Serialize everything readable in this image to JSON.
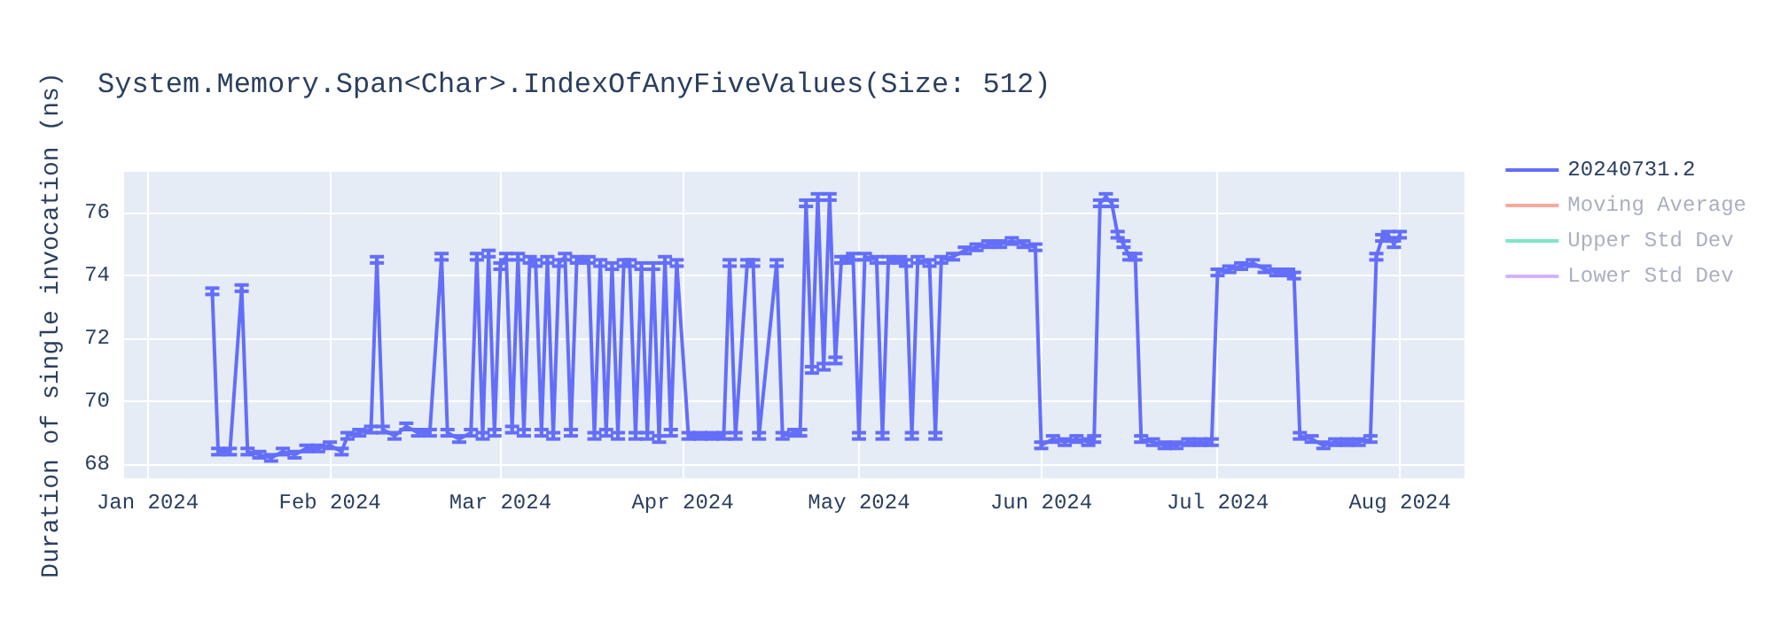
{
  "chart_data": {
    "type": "line",
    "title": "System.Memory.Span<Char>.IndexOfAnyFiveValues(Size: 512)",
    "ylabel": "Duration of single invocation (ns)",
    "x": [
      "2024-01-12",
      "2024-01-13",
      "2024-01-15",
      "2024-01-17",
      "2024-01-18",
      "2024-01-20",
      "2024-01-22",
      "2024-01-24",
      "2024-01-26",
      "2024-01-28",
      "2024-01-30",
      "2024-02-01",
      "2024-02-03",
      "2024-02-04",
      "2024-02-06",
      "2024-02-08",
      "2024-02-09",
      "2024-02-10",
      "2024-02-12",
      "2024-02-14",
      "2024-02-16",
      "2024-02-18",
      "2024-02-20",
      "2024-02-21",
      "2024-02-23",
      "2024-02-25",
      "2024-02-26",
      "2024-02-27",
      "2024-02-28",
      "2024-02-29",
      "2024-03-01",
      "2024-03-02",
      "2024-03-03",
      "2024-03-04",
      "2024-03-05",
      "2024-03-06",
      "2024-03-07",
      "2024-03-08",
      "2024-03-09",
      "2024-03-10",
      "2024-03-11",
      "2024-03-12",
      "2024-03-13",
      "2024-03-14",
      "2024-03-16",
      "2024-03-17",
      "2024-03-18",
      "2024-03-19",
      "2024-03-20",
      "2024-03-21",
      "2024-03-22",
      "2024-03-23",
      "2024-03-24",
      "2024-03-25",
      "2024-03-26",
      "2024-03-27",
      "2024-03-28",
      "2024-03-29",
      "2024-03-30",
      "2024-03-31",
      "2024-04-02",
      "2024-04-04",
      "2024-04-06",
      "2024-04-08",
      "2024-04-09",
      "2024-04-10",
      "2024-04-12",
      "2024-04-13",
      "2024-04-14",
      "2024-04-17",
      "2024-04-18",
      "2024-04-20",
      "2024-04-21",
      "2024-04-22",
      "2024-04-23",
      "2024-04-24",
      "2024-04-25",
      "2024-04-26",
      "2024-04-27",
      "2024-04-28",
      "2024-04-29",
      "2024-04-30",
      "2024-05-01",
      "2024-05-02",
      "2024-05-04",
      "2024-05-05",
      "2024-05-06",
      "2024-05-08",
      "2024-05-09",
      "2024-05-10",
      "2024-05-11",
      "2024-05-13",
      "2024-05-14",
      "2024-05-15",
      "2024-05-17",
      "2024-05-19",
      "2024-05-21",
      "2024-05-23",
      "2024-05-25",
      "2024-05-27",
      "2024-05-29",
      "2024-05-31",
      "2024-06-01",
      "2024-06-03",
      "2024-06-05",
      "2024-06-07",
      "2024-06-09",
      "2024-06-10",
      "2024-06-11",
      "2024-06-12",
      "2024-06-13",
      "2024-06-14",
      "2024-06-15",
      "2024-06-16",
      "2024-06-17",
      "2024-06-18",
      "2024-06-20",
      "2024-06-22",
      "2024-06-24",
      "2024-06-26",
      "2024-06-28",
      "2024-06-30",
      "2024-07-01",
      "2024-07-03",
      "2024-07-05",
      "2024-07-07",
      "2024-07-09",
      "2024-07-11",
      "2024-07-13",
      "2024-07-14",
      "2024-07-15",
      "2024-07-17",
      "2024-07-19",
      "2024-07-21",
      "2024-07-23",
      "2024-07-25",
      "2024-07-27",
      "2024-07-28",
      "2024-07-29",
      "2024-07-30",
      "2024-07-31",
      "2024-08-01"
    ],
    "series": [
      {
        "name": "20240731.2",
        "color": "#636efa",
        "values": [
          73.5,
          68.4,
          68.4,
          73.6,
          68.4,
          68.3,
          68.2,
          68.4,
          68.3,
          68.5,
          68.5,
          68.6,
          68.4,
          68.9,
          69.0,
          69.1,
          74.5,
          69.1,
          68.9,
          69.2,
          69.0,
          69.0,
          74.6,
          69.0,
          68.8,
          69.0,
          74.6,
          68.9,
          74.7,
          69.0,
          74.3,
          74.6,
          69.1,
          74.6,
          69.0,
          74.5,
          74.4,
          69.0,
          74.5,
          68.9,
          74.4,
          74.6,
          69.0,
          74.5,
          74.5,
          68.9,
          74.4,
          69.0,
          74.3,
          68.9,
          74.4,
          74.4,
          68.9,
          74.3,
          68.9,
          74.3,
          68.8,
          74.5,
          69.0,
          74.4,
          68.9,
          68.9,
          68.9,
          68.9,
          74.4,
          68.9,
          74.4,
          74.4,
          68.9,
          74.4,
          68.9,
          69.0,
          69.0,
          76.3,
          71.0,
          76.5,
          71.1,
          76.5,
          71.3,
          74.5,
          74.5,
          74.6,
          68.9,
          74.6,
          74.5,
          68.9,
          74.5,
          74.5,
          74.4,
          68.9,
          74.5,
          74.4,
          68.9,
          74.5,
          74.6,
          74.8,
          74.9,
          75.0,
          75.0,
          75.1,
          75.0,
          74.9,
          68.6,
          68.8,
          68.7,
          68.8,
          68.7,
          68.8,
          76.3,
          76.5,
          76.3,
          75.3,
          75.0,
          74.6,
          74.6,
          68.8,
          68.7,
          68.6,
          68.6,
          68.7,
          68.7,
          68.7,
          74.1,
          74.2,
          74.3,
          74.4,
          74.2,
          74.1,
          74.1,
          74.0,
          68.9,
          68.8,
          68.6,
          68.7,
          68.7,
          68.7,
          68.8,
          74.6,
          75.2,
          75.3,
          75.0,
          75.3
        ],
        "errors": [
          0.1,
          0.1,
          0.1,
          0.1,
          0.1,
          0.1,
          0.1,
          0.1,
          0.1,
          0.1,
          0.1,
          0.1,
          0.1,
          0.1,
          0.1,
          0.1,
          0.1,
          0.1,
          0.1,
          0.1,
          0.1,
          0.1,
          0.1,
          0.1,
          0.1,
          0.1,
          0.1,
          0.1,
          0.1,
          0.1,
          0.1,
          0.1,
          0.1,
          0.1,
          0.1,
          0.1,
          0.1,
          0.1,
          0.1,
          0.1,
          0.1,
          0.1,
          0.1,
          0.1,
          0.1,
          0.1,
          0.1,
          0.1,
          0.1,
          0.1,
          0.1,
          0.1,
          0.1,
          0.1,
          0.1,
          0.1,
          0.1,
          0.1,
          0.1,
          0.1,
          0.1,
          0.1,
          0.1,
          0.1,
          0.1,
          0.1,
          0.1,
          0.1,
          0.1,
          0.1,
          0.1,
          0.1,
          0.1,
          0.1,
          0.1,
          0.1,
          0.1,
          0.1,
          0.1,
          0.1,
          0.1,
          0.1,
          0.1,
          0.1,
          0.1,
          0.1,
          0.1,
          0.1,
          0.1,
          0.1,
          0.1,
          0.1,
          0.1,
          0.1,
          0.1,
          0.1,
          0.1,
          0.1,
          0.1,
          0.1,
          0.1,
          0.1,
          0.1,
          0.1,
          0.1,
          0.1,
          0.1,
          0.1,
          0.1,
          0.1,
          0.1,
          0.1,
          0.1,
          0.1,
          0.1,
          0.1,
          0.1,
          0.1,
          0.1,
          0.1,
          0.1,
          0.1,
          0.1,
          0.1,
          0.1,
          0.1,
          0.1,
          0.1,
          0.1,
          0.1,
          0.1,
          0.1,
          0.1,
          0.1,
          0.1,
          0.1,
          0.1,
          0.1,
          0.1,
          0.1,
          0.1,
          0.1
        ]
      },
      {
        "name": "Moving Average",
        "color": "#ef553b",
        "values": [
          null,
          null,
          null,
          null,
          null,
          null,
          null,
          null,
          null,
          null,
          null,
          null,
          null,
          null,
          null,
          null,
          null,
          null,
          null,
          null,
          null,
          null,
          null,
          null,
          null,
          null,
          null,
          null,
          null,
          null,
          null,
          null,
          null,
          null,
          null,
          null,
          null,
          null,
          null,
          null,
          null,
          null,
          null,
          null,
          null,
          null,
          null,
          null,
          null,
          null,
          null,
          null,
          null,
          null,
          null,
          null,
          null,
          null,
          null,
          null,
          null,
          null,
          null,
          null,
          null,
          null,
          null,
          null,
          null,
          null,
          null,
          null,
          null,
          null,
          null,
          null,
          null,
          null,
          null,
          null,
          null,
          null,
          null,
          null,
          null,
          null,
          null,
          null,
          null,
          null,
          null,
          null,
          null,
          null,
          null,
          null,
          null,
          null,
          null,
          null,
          null,
          null,
          null,
          null,
          null,
          null,
          null,
          null,
          null,
          null,
          null,
          null,
          null,
          null,
          null,
          null,
          null,
          null,
          null,
          null,
          null,
          null,
          null,
          null,
          null,
          null,
          null,
          null,
          null,
          null,
          null,
          null,
          null,
          null,
          null,
          null,
          null,
          null,
          null,
          null,
          null,
          null
        ]
      },
      {
        "name": "Upper Std Dev",
        "color": "#00cc96",
        "values": [
          null,
          null,
          null,
          null,
          null,
          null,
          null,
          null,
          null,
          null,
          null,
          null,
          null,
          null,
          null,
          null,
          null,
          null,
          null,
          null,
          null,
          null,
          null,
          null,
          null,
          null,
          null,
          null,
          null,
          null,
          null,
          null,
          null,
          null,
          null,
          null,
          null,
          null,
          null,
          null,
          null,
          null,
          null,
          null,
          null,
          null,
          null,
          null,
          null,
          null,
          null,
          null,
          null,
          null,
          null,
          null,
          null,
          null,
          null,
          null,
          null,
          null,
          null,
          null,
          null,
          null,
          null,
          null,
          null,
          null,
          null,
          null,
          null,
          null,
          null,
          null,
          null,
          null,
          null,
          null,
          null,
          null,
          null,
          null,
          null,
          null,
          null,
          null,
          null,
          null,
          null,
          null,
          null,
          null,
          null,
          null,
          null,
          null,
          null,
          null,
          null,
          null,
          null,
          null,
          null,
          null,
          null,
          null,
          null,
          null,
          null,
          null,
          null,
          null,
          null,
          null,
          null,
          null,
          null,
          null,
          null,
          null,
          null,
          null,
          null,
          null,
          null,
          null,
          null,
          null,
          null,
          null,
          null,
          null,
          null,
          null,
          null,
          null,
          null,
          null,
          null,
          null
        ]
      },
      {
        "name": "Lower Std Dev",
        "color": "#ab63fa",
        "values": [
          null,
          null,
          null,
          null,
          null,
          null,
          null,
          null,
          null,
          null,
          null,
          null,
          null,
          null,
          null,
          null,
          null,
          null,
          null,
          null,
          null,
          null,
          null,
          null,
          null,
          null,
          null,
          null,
          null,
          null,
          null,
          null,
          null,
          null,
          null,
          null,
          null,
          null,
          null,
          null,
          null,
          null,
          null,
          null,
          null,
          null,
          null,
          null,
          null,
          null,
          null,
          null,
          null,
          null,
          null,
          null,
          null,
          null,
          null,
          null,
          null,
          null,
          null,
          null,
          null,
          null,
          null,
          null,
          null,
          null,
          null,
          null,
          null,
          null,
          null,
          null,
          null,
          null,
          null,
          null,
          null,
          null,
          null,
          null,
          null,
          null,
          null,
          null,
          null,
          null,
          null,
          null,
          null,
          null,
          null,
          null,
          null,
          null,
          null,
          null,
          null,
          null,
          null,
          null,
          null,
          null,
          null,
          null,
          null,
          null,
          null,
          null,
          null,
          null,
          null,
          null,
          null,
          null,
          null,
          null,
          null,
          null,
          null,
          null,
          null,
          null,
          null,
          null,
          null,
          null,
          null,
          null,
          null,
          null,
          null,
          null,
          null,
          null,
          null,
          null,
          null,
          null
        ]
      }
    ],
    "xlim": [
      "2023-12-28",
      "2024-08-12"
    ],
    "xticks": [
      {
        "value": "2024-01-01",
        "label": "Jan 2024"
      },
      {
        "value": "2024-02-01",
        "label": "Feb 2024"
      },
      {
        "value": "2024-03-01",
        "label": "Mar 2024"
      },
      {
        "value": "2024-04-01",
        "label": "Apr 2024"
      },
      {
        "value": "2024-05-01",
        "label": "May 2024"
      },
      {
        "value": "2024-06-01",
        "label": "Jun 2024"
      },
      {
        "value": "2024-07-01",
        "label": "Jul 2024"
      },
      {
        "value": "2024-08-01",
        "label": "Aug 2024"
      }
    ],
    "ylim": [
      67.55,
      77.3
    ],
    "yticks": [
      68,
      70,
      72,
      74,
      76
    ],
    "grid": true,
    "legend": "top right",
    "marker": "none",
    "line_style": "solid"
  }
}
